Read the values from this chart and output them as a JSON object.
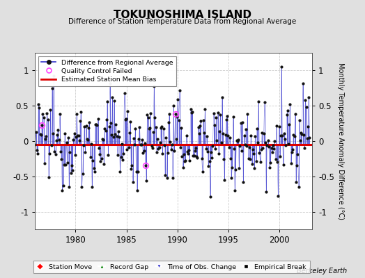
{
  "title": "TOKUNOSHIMA ISLAND",
  "subtitle": "Difference of Station Temperature Data from Regional Average",
  "ylabel": "Monthly Temperature Anomaly Difference (°C)",
  "xticks": [
    1980,
    1985,
    1990,
    1995,
    2000
  ],
  "yticks": [
    -1,
    -0.5,
    0,
    0.5,
    1
  ],
  "ytick_labels": [
    "-1",
    "-0.5",
    "0",
    "0.5",
    "1"
  ],
  "ylim": [
    -1.25,
    1.25
  ],
  "xlim": [
    1976.0,
    2003.2
  ],
  "bias_line": -0.05,
  "bias_color": "#dd0000",
  "series_color": "#3333cc",
  "dot_color": "#111111",
  "background_color": "#e0e0e0",
  "plot_bg_color": "#ffffff",
  "berkeley_earth_text": "Berkeley Earth",
  "seed": 12345,
  "n_points": 324,
  "year_start": 1976.042,
  "year_step": 0.08333,
  "qc_indices": [
    8,
    130,
    165
  ]
}
